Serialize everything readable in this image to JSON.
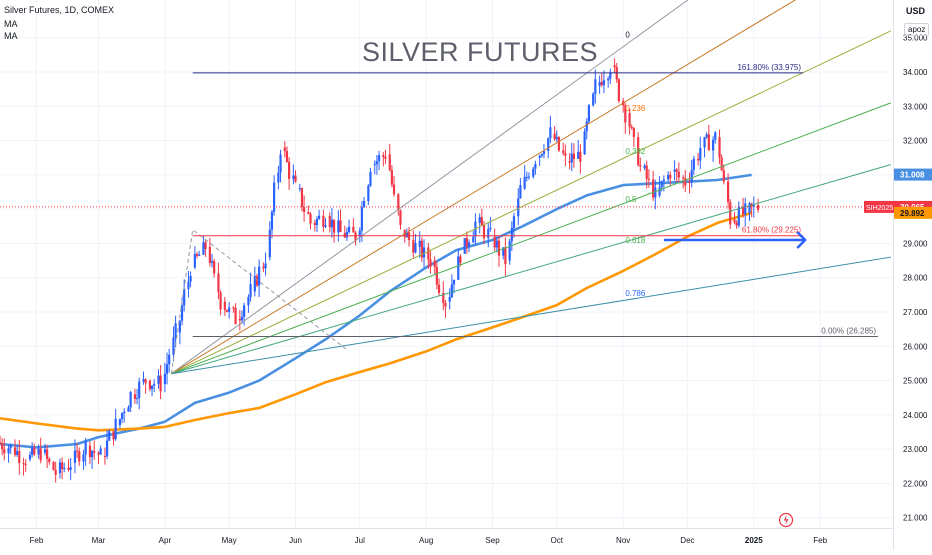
{
  "header": {
    "title": "Silver Futures, 1D, COMEX",
    "ma1": "MA",
    "ma2": "MA",
    "currency": "USD",
    "scale_mode": "apoz"
  },
  "chart_data": {
    "type": "line",
    "title": "SILVER FUTURES",
    "symbol": "SIH2025",
    "x_tick_labels": [
      "Feb",
      "Mar",
      "Apr",
      "May",
      "Jun",
      "Jul",
      "Aug",
      "Sep",
      "Oct",
      "Nov",
      "Dec",
      "2025",
      "Feb"
    ],
    "y_tick_labels": [
      "21.000",
      "22.000",
      "23.000",
      "24.000",
      "25.000",
      "26.000",
      "27.000",
      "28.000",
      "29.000",
      "30.000",
      "31.000",
      "32.000",
      "33.000",
      "34.000",
      "35.000"
    ],
    "ylim": [
      20.7,
      36.1
    ],
    "x_range": [
      "2024-01-15",
      "2025-03-07"
    ],
    "price_labels": {
      "last": "30.065",
      "ma_fast": "31.008",
      "ma_slow": "29.892"
    },
    "colors": {
      "up": "#2962ff",
      "down": "#f23645",
      "ma_fast": "#4a90e2",
      "ma_slow": "#ff9800"
    },
    "series": [
      {
        "name": "",
        "color": "#4a90e2",
        "points": [
          [
            "2024-01-15",
            23.15
          ],
          [
            "2024-02-01",
            23.05
          ],
          [
            "2024-02-20",
            23.15
          ],
          [
            "2024-03-01",
            23.35
          ],
          [
            "2024-03-20",
            23.6
          ],
          [
            "2024-04-01",
            23.8
          ],
          [
            "2024-04-15",
            24.35
          ],
          [
            "2024-05-01",
            24.65
          ],
          [
            "2024-05-15",
            25.0
          ],
          [
            "2024-06-01",
            25.65
          ],
          [
            "2024-06-15",
            26.2
          ],
          [
            "2024-07-01",
            26.9
          ],
          [
            "2024-07-15",
            27.6
          ],
          [
            "2024-08-01",
            28.3
          ],
          [
            "2024-08-15",
            28.8
          ],
          [
            "2024-09-01",
            29.1
          ],
          [
            "2024-09-15",
            29.5
          ],
          [
            "2024-10-01",
            30.0
          ],
          [
            "2024-10-15",
            30.4
          ],
          [
            "2024-11-01",
            30.7
          ],
          [
            "2024-11-15",
            30.75
          ],
          [
            "2024-12-01",
            30.8
          ],
          [
            "2024-12-15",
            30.85
          ],
          [
            "2024-12-31",
            31.0
          ]
        ]
      },
      {
        "name": "",
        "color": "#ff9800",
        "points": [
          [
            "2024-01-15",
            23.9
          ],
          [
            "2024-02-01",
            23.75
          ],
          [
            "2024-02-20",
            23.6
          ],
          [
            "2024-03-01",
            23.55
          ],
          [
            "2024-03-20",
            23.6
          ],
          [
            "2024-04-01",
            23.65
          ],
          [
            "2024-04-15",
            23.85
          ],
          [
            "2024-05-01",
            24.05
          ],
          [
            "2024-05-15",
            24.2
          ],
          [
            "2024-06-01",
            24.6
          ],
          [
            "2024-06-15",
            24.95
          ],
          [
            "2024-07-01",
            25.25
          ],
          [
            "2024-07-15",
            25.5
          ],
          [
            "2024-08-01",
            25.85
          ],
          [
            "2024-08-15",
            26.2
          ],
          [
            "2024-09-01",
            26.55
          ],
          [
            "2024-09-15",
            26.85
          ],
          [
            "2024-10-01",
            27.2
          ],
          [
            "2024-10-15",
            27.7
          ],
          [
            "2024-11-01",
            28.2
          ],
          [
            "2024-11-15",
            28.65
          ],
          [
            "2024-12-01",
            29.2
          ],
          [
            "2024-12-15",
            29.6
          ],
          [
            "2024-12-31",
            29.89
          ]
        ]
      }
    ],
    "candles": [
      {
        "date": "2024-01-15",
        "o": 23.2,
        "c": 23.05
      },
      {
        "date": "2024-01-22",
        "o": 23.05,
        "c": 22.7
      },
      {
        "date": "2024-01-29",
        "o": 22.7,
        "c": 22.9
      },
      {
        "date": "2024-02-05",
        "o": 22.9,
        "c": 22.3
      },
      {
        "date": "2024-02-12",
        "o": 22.3,
        "c": 22.6
      },
      {
        "date": "2024-02-19",
        "o": 22.6,
        "c": 23.1
      },
      {
        "date": "2024-02-26",
        "o": 23.1,
        "c": 22.8
      },
      {
        "date": "2024-03-04",
        "o": 22.8,
        "c": 23.7
      },
      {
        "date": "2024-03-11",
        "o": 23.7,
        "c": 24.6
      },
      {
        "date": "2024-03-18",
        "o": 24.6,
        "c": 25.0
      },
      {
        "date": "2024-03-25",
        "o": 25.0,
        "c": 24.9
      },
      {
        "date": "2024-04-01",
        "o": 24.9,
        "c": 26.4
      },
      {
        "date": "2024-04-08",
        "o": 26.4,
        "c": 28.3
      },
      {
        "date": "2024-04-15",
        "o": 28.3,
        "c": 28.9
      },
      {
        "date": "2024-04-22",
        "o": 28.9,
        "c": 27.3
      },
      {
        "date": "2024-04-29",
        "o": 27.3,
        "c": 26.8
      },
      {
        "date": "2024-05-06",
        "o": 26.8,
        "c": 27.6
      },
      {
        "date": "2024-05-13",
        "o": 27.6,
        "c": 28.6
      },
      {
        "date": "2024-05-20",
        "o": 28.6,
        "c": 31.8
      },
      {
        "date": "2024-05-27",
        "o": 31.8,
        "c": 30.6
      },
      {
        "date": "2024-06-03",
        "o": 30.6,
        "c": 29.6
      },
      {
        "date": "2024-06-10",
        "o": 29.6,
        "c": 29.8
      },
      {
        "date": "2024-06-17",
        "o": 29.8,
        "c": 29.3
      },
      {
        "date": "2024-06-24",
        "o": 29.3,
        "c": 29.2
      },
      {
        "date": "2024-07-01",
        "o": 29.2,
        "c": 31.3
      },
      {
        "date": "2024-07-08",
        "o": 31.3,
        "c": 31.6
      },
      {
        "date": "2024-07-15",
        "o": 31.6,
        "c": 29.4
      },
      {
        "date": "2024-07-22",
        "o": 29.4,
        "c": 28.9
      },
      {
        "date": "2024-07-29",
        "o": 28.9,
        "c": 28.5
      },
      {
        "date": "2024-08-05",
        "o": 28.5,
        "c": 27.3
      },
      {
        "date": "2024-08-12",
        "o": 27.3,
        "c": 28.7
      },
      {
        "date": "2024-08-19",
        "o": 28.7,
        "c": 29.6
      },
      {
        "date": "2024-08-26",
        "o": 29.6,
        "c": 29.2
      },
      {
        "date": "2024-09-02",
        "o": 29.2,
        "c": 28.5
      },
      {
        "date": "2024-09-09",
        "o": 28.5,
        "c": 30.6
      },
      {
        "date": "2024-09-16",
        "o": 30.6,
        "c": 31.5
      },
      {
        "date": "2024-09-23",
        "o": 31.5,
        "c": 32.2
      },
      {
        "date": "2024-09-30",
        "o": 32.2,
        "c": 31.4
      },
      {
        "date": "2024-10-07",
        "o": 31.4,
        "c": 31.6
      },
      {
        "date": "2024-10-14",
        "o": 31.6,
        "c": 33.6
      },
      {
        "date": "2024-10-21",
        "o": 33.6,
        "c": 34.2
      },
      {
        "date": "2024-10-28",
        "o": 34.2,
        "c": 32.8
      },
      {
        "date": "2024-11-04",
        "o": 32.8,
        "c": 31.2
      },
      {
        "date": "2024-11-11",
        "o": 31.2,
        "c": 30.4
      },
      {
        "date": "2024-11-18",
        "o": 30.4,
        "c": 31.1
      },
      {
        "date": "2024-11-25",
        "o": 31.1,
        "c": 30.8
      },
      {
        "date": "2024-12-02",
        "o": 30.8,
        "c": 31.8
      },
      {
        "date": "2024-12-09",
        "o": 31.8,
        "c": 32.1
      },
      {
        "date": "2024-12-16",
        "o": 32.1,
        "c": 29.7
      },
      {
        "date": "2024-12-23",
        "o": 29.7,
        "c": 29.9
      },
      {
        "date": "2024-12-30",
        "o": 29.9,
        "c": 30.06
      }
    ],
    "fib_retracement": {
      "levels": [
        {
          "label": "0",
          "price": 35.1,
          "style": "plain",
          "color": "#131722"
        },
        {
          "label": "0.236",
          "price": 32.95,
          "style": "plain",
          "color": "#ff6d00"
        },
        {
          "label": "0.382",
          "price": 31.7,
          "style": "plain",
          "color": "#4caf50"
        },
        {
          "label": "0.5",
          "price": 30.3,
          "style": "plain",
          "color": "#4caf50"
        },
        {
          "label": "0.618",
          "price": 29.1,
          "style": "plain",
          "color": "#4caf50"
        },
        {
          "label": "0.786",
          "price": 27.55,
          "style": "plain",
          "color": "#2962ff"
        }
      ]
    },
    "horizontal_levels": [
      {
        "label": "161.80% (33.975)",
        "price": 33.975,
        "color": "#2a2e87",
        "x_start": "2024-04-14",
        "x_end": "2025-01-24"
      },
      {
        "label": "61.80% (29.225)",
        "price": 29.225,
        "color": "#f23645",
        "x_start": "2024-04-14",
        "x_end": "2025-01-24"
      },
      {
        "label": "0.00% (26.285)",
        "price": 26.285,
        "color": "#5d606b",
        "x_start": "2024-04-14",
        "x_end": "2025-02-28"
      }
    ],
    "fan_origin": {
      "date": "2024-04-04",
      "price": 25.2
    },
    "fan_lines": [
      {
        "color": "#9598a1",
        "end_date": "2024-12-10",
        "end_price": 36.5
      },
      {
        "color": "#c97828",
        "end_date": "2025-01-31",
        "end_price": 36.5
      },
      {
        "color": "#9aae3a",
        "end_date": "2025-03-06",
        "end_price": 35.2
      },
      {
        "color": "#4caf50",
        "end_date": "2025-03-06",
        "end_price": 33.1
      },
      {
        "color": "#43a87a",
        "end_date": "2025-03-06",
        "end_price": 31.3
      },
      {
        "color": "#3a8fa8",
        "end_date": "2025-03-06",
        "end_price": 28.6
      }
    ],
    "arrow": {
      "from_date": "2024-11-20",
      "to_date": "2025-01-25",
      "price": 29.1,
      "color": "#2962ff"
    }
  }
}
